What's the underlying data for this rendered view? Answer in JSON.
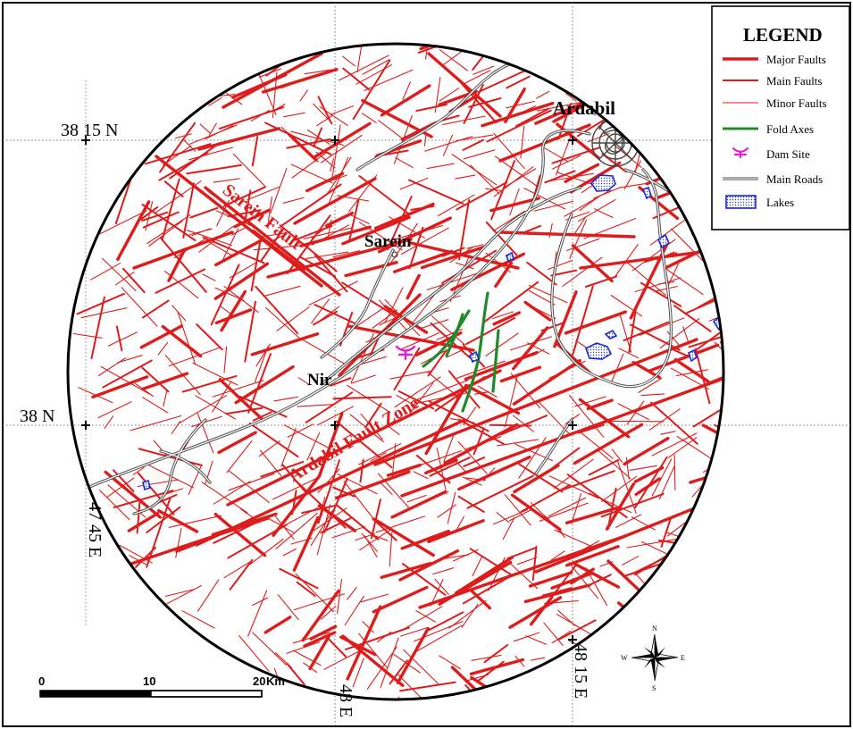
{
  "legend": {
    "title": "LEGEND",
    "items": [
      {
        "label": "Major Faults",
        "symbol": "thick-red-line"
      },
      {
        "label": "Main Faults",
        "symbol": "medium-red-line"
      },
      {
        "label": "Minor Faults",
        "symbol": "thin-red-line"
      },
      {
        "label": "Fold Axes",
        "symbol": "green-line"
      },
      {
        "label": "Dam Site",
        "symbol": "magenta-dam-marker"
      },
      {
        "label": "Main Roads",
        "symbol": "gray-road-line"
      },
      {
        "label": "Lakes",
        "symbol": "blue-dotted-box"
      }
    ]
  },
  "places": {
    "ardabil": "Ardabil",
    "sarein": "Sarein",
    "nir": "Nir",
    "sarein_fault": "Sarein Fault",
    "ardabil_fault_zone": "Ardabil Fault Zone"
  },
  "coordinates": {
    "lat_38_15": "38 15 N",
    "lat_38": "38 N",
    "lon_47_45": "47 45 E",
    "lon_48": "48 E",
    "lon_48_15": "48 15 E"
  },
  "scale_bar": {
    "labels": [
      "0",
      "10",
      "20"
    ],
    "unit": "Km"
  },
  "compass": {
    "n": "N",
    "s": "S",
    "e": "E",
    "w": "W"
  },
  "colors": {
    "fault": "#dd1c1c",
    "fold": "#1f8a2a",
    "dam": "#e020d0",
    "road": "#555555",
    "lake": "#1a2ad6",
    "grid": "#7a7a7a"
  }
}
